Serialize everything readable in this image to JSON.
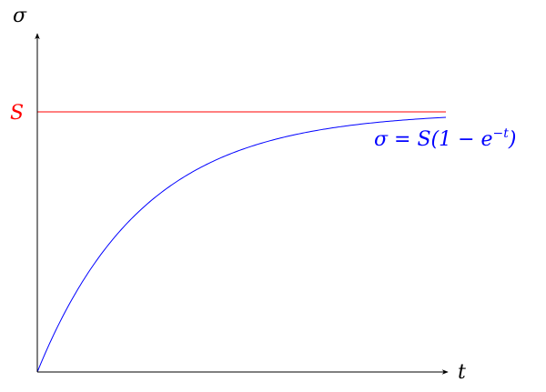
{
  "chart_data": {
    "type": "line",
    "title": "",
    "xlabel": "t",
    "ylabel": "σ",
    "xlim": [
      0,
      4
    ],
    "ylim": [
      0,
      1.1
    ],
    "grid": false,
    "colors": {
      "axes": "#000000",
      "curve": "#0000ff",
      "asymptote": "#ff0000"
    },
    "asymptote": {
      "label": "S",
      "value": 1
    },
    "series": [
      {
        "name": "σ = S(1 − e^−t)",
        "label_parts": {
          "main": "σ = S(1 − e",
          "sup": "−t",
          "close": ")"
        },
        "x": [
          0,
          0.25,
          0.5,
          0.75,
          1,
          1.25,
          1.5,
          1.75,
          2,
          2.25,
          2.5,
          2.75,
          3,
          3.25,
          3.5,
          3.75,
          3.86
        ],
        "y": [
          0,
          0.221,
          0.393,
          0.528,
          0.632,
          0.713,
          0.777,
          0.826,
          0.865,
          0.895,
          0.918,
          0.936,
          0.95,
          0.961,
          0.97,
          0.976,
          0.979
        ]
      }
    ]
  }
}
